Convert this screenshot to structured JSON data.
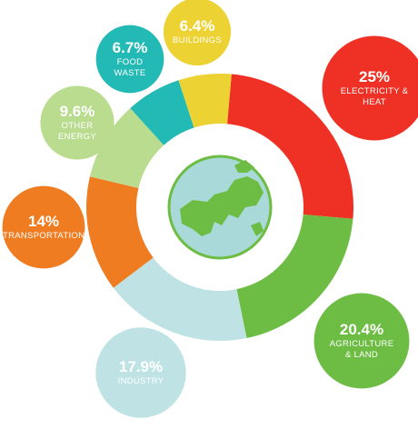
{
  "chart_data": {
    "type": "donut",
    "categories": [
      "ELECTRICITY & HEAT",
      "AGRICULTURE & LAND",
      "INDUSTRY",
      "TRANSPORTATION",
      "OTHER ENERGY",
      "FOOD WASTE",
      "BUILDINGS"
    ],
    "values": [
      25,
      20.4,
      17.9,
      14,
      9.6,
      6.7,
      6.4
    ],
    "value_labels": [
      "25%",
      "20.4%",
      "17.9%",
      "14%",
      "9.6%",
      "6.7%",
      "6.4%"
    ],
    "colors": [
      "#ee3124",
      "#6dbd44",
      "#bfe3e4",
      "#f07c21",
      "#b9dc8f",
      "#23b9b5",
      "#ecd232"
    ]
  }
}
